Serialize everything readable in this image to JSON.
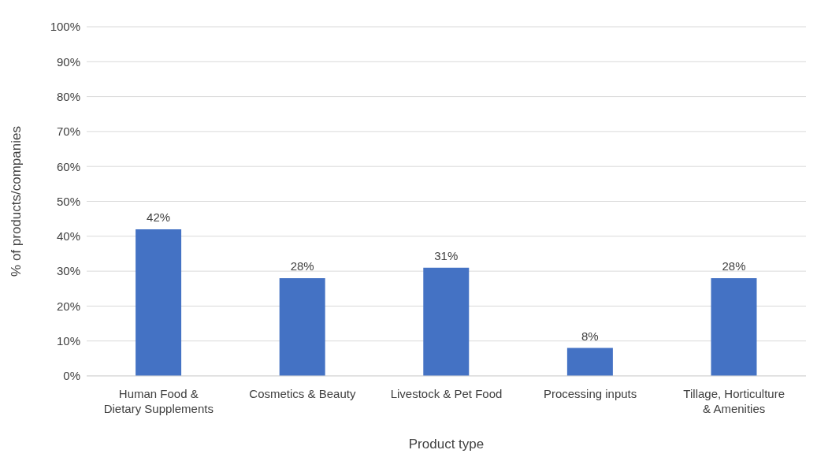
{
  "chart_data": {
    "type": "bar",
    "xlabel": "Product type",
    "ylabel": "% of products/companies",
    "categories": [
      "Human Food & Dietary Supplements",
      "Cosmetics & Beauty",
      "Livestock & Pet Food",
      "Processing inputs",
      "Tillage, Horticulture & Amenities"
    ],
    "values": [
      42,
      28,
      31,
      8,
      28
    ],
    "value_labels": [
      "42%",
      "28%",
      "31%",
      "8%",
      "28%"
    ],
    "color": "#4472c4",
    "ylim": [
      0,
      100
    ],
    "yticks": [
      {
        "value": 0,
        "label": "0%"
      },
      {
        "value": 10,
        "label": "10%"
      },
      {
        "value": 20,
        "label": "20%"
      },
      {
        "value": 30,
        "label": "30%"
      },
      {
        "value": 40,
        "label": "40%"
      },
      {
        "value": 50,
        "label": "50%"
      },
      {
        "value": 60,
        "label": "60%"
      },
      {
        "value": 70,
        "label": "70%"
      },
      {
        "value": 80,
        "label": "80%"
      },
      {
        "value": 90,
        "label": "90%"
      },
      {
        "value": 100,
        "label": "100%"
      }
    ],
    "grid": "y",
    "legend": false
  }
}
